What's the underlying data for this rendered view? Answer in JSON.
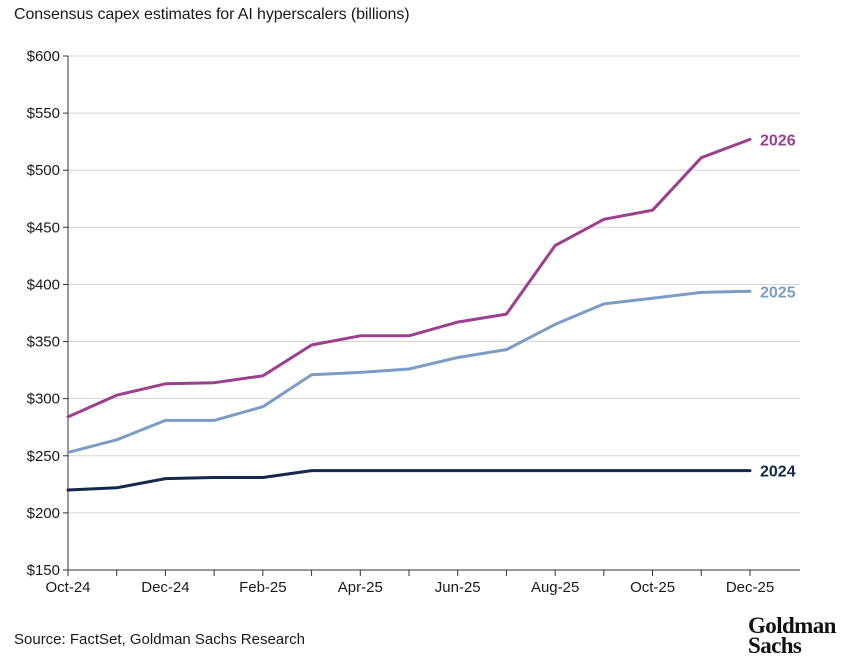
{
  "title": "Consensus capex estimates for AI hyperscalers (billions)",
  "source": "Source: FactSet, Goldman Sachs Research",
  "logo": {
    "line1": "Goldman",
    "line2": "Sachs"
  },
  "chart_data": {
    "type": "line",
    "title": "Consensus capex estimates for AI hyperscalers (billions)",
    "xlabel": "",
    "ylabel": "",
    "ylim": [
      150,
      600
    ],
    "yticks": [
      150,
      200,
      250,
      300,
      350,
      400,
      450,
      500,
      550,
      600
    ],
    "ytick_labels": [
      "$150",
      "$200",
      "$250",
      "$300",
      "$350",
      "$400",
      "$450",
      "$500",
      "$550",
      "$600"
    ],
    "x": [
      "Oct-24",
      "Nov-24",
      "Dec-24",
      "Jan-25",
      "Feb-25",
      "Mar-25",
      "Apr-25",
      "May-25",
      "Jun-25",
      "Jul-25",
      "Aug-25",
      "Sep-25",
      "Oct-25",
      "Nov-25",
      "Dec-25"
    ],
    "xtick_labels": [
      "Oct-24",
      "Dec-24",
      "Feb-25",
      "Apr-25",
      "Jun-25",
      "Aug-25",
      "Oct-25",
      "Dec-25"
    ],
    "grid": true,
    "series": [
      {
        "name": "2026",
        "color": "#9b3f8e",
        "values": [
          284,
          303,
          313,
          314,
          320,
          347,
          355,
          355,
          367,
          374,
          434,
          457,
          465,
          511,
          527
        ]
      },
      {
        "name": "2025",
        "color": "#7b9cc4",
        "values": [
          253,
          264,
          281,
          281,
          293,
          321,
          323,
          326,
          336,
          343,
          365,
          383,
          388,
          393,
          394
        ]
      },
      {
        "name": "2024",
        "color": "#14284b",
        "values": [
          220,
          222,
          230,
          231,
          231,
          237,
          237,
          237,
          237,
          237,
          237,
          237,
          237,
          237,
          237
        ]
      }
    ]
  }
}
